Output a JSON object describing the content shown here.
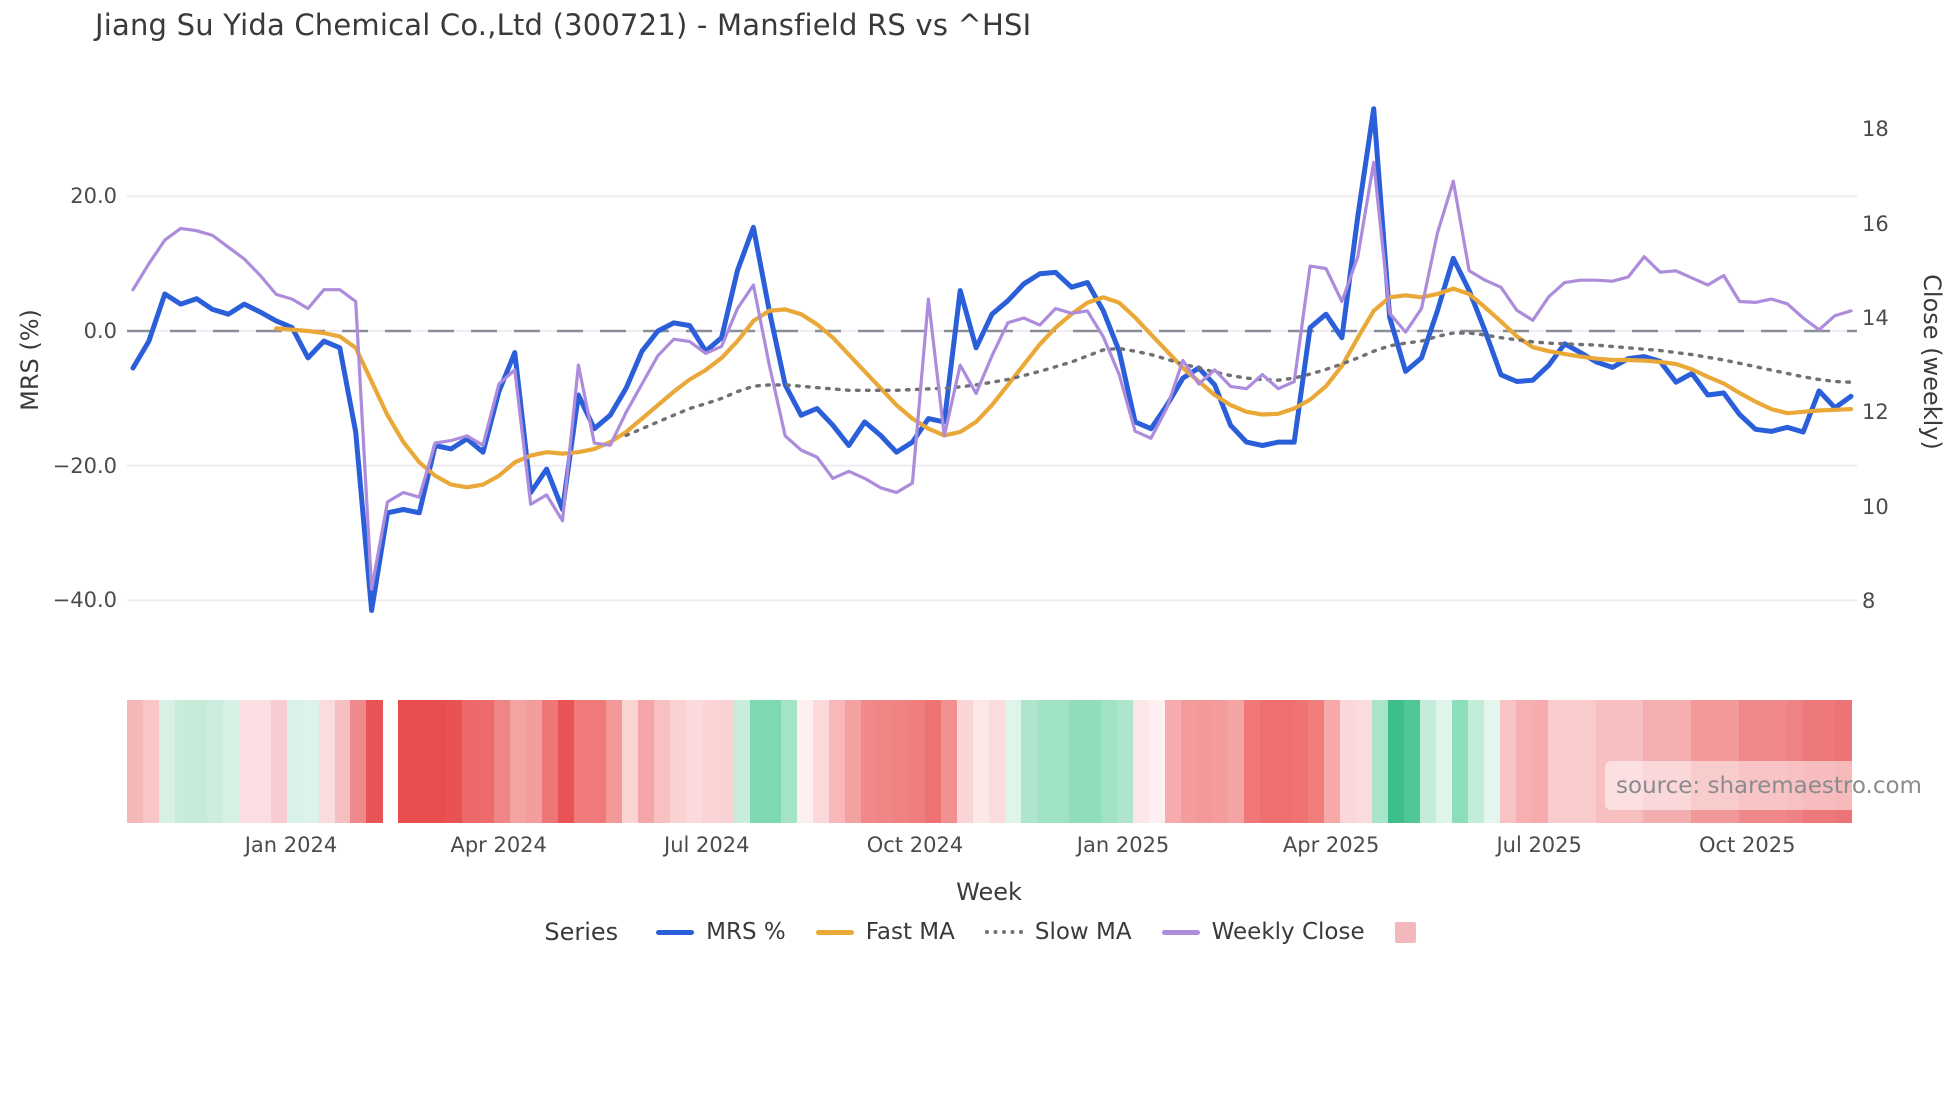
{
  "title": "Jiang Su Yida Chemical Co.,Ltd (300721) - Mansfield RS vs ^HSI",
  "source_note": "source: sharemaestro.com",
  "axes": {
    "left": {
      "label": "MRS (%)"
    },
    "right": {
      "label": "Close (weekly)"
    },
    "x": {
      "label": "Week"
    }
  },
  "legend": {
    "title": "Series",
    "items": [
      {
        "label": "MRS %",
        "style": "line",
        "color": "#2B5FD9"
      },
      {
        "label": "Fast MA",
        "style": "line",
        "color": "#EAA838"
      },
      {
        "label": "Slow MA",
        "style": "dotted",
        "color": "#707075"
      },
      {
        "label": "Weekly Close",
        "style": "line",
        "color": "#AC8CDB"
      },
      {
        "label": "",
        "style": "square",
        "color": "#F2B8BC"
      }
    ]
  },
  "chart_data": {
    "type": "line",
    "x_unit": "week",
    "n_points": 109,
    "y_left": {
      "label": "MRS (%)",
      "ticks": [
        20,
        0,
        -20,
        -40
      ],
      "tick_labels": [
        "20.0",
        "0.0",
        "−20.0",
        "−40.0"
      ],
      "zero_line": 0
    },
    "y_right": {
      "label": "Close (weekly)",
      "ticks": [
        18,
        16,
        14,
        12,
        10,
        8
      ],
      "tick_labels": [
        "18",
        "16",
        "14",
        "12",
        "10",
        "8"
      ]
    },
    "x_ticks": [
      {
        "label": "Jan 2024",
        "week": 9.93
      },
      {
        "label": "Apr 2024",
        "week": 22.99
      },
      {
        "label": "Jul 2024",
        "week": 36.07
      },
      {
        "label": "Oct 2024",
        "week": 49.16
      },
      {
        "label": "Jan 2025",
        "week": 62.24
      },
      {
        "label": "Apr 2025",
        "week": 75.32
      },
      {
        "label": "Jul 2025",
        "week": 88.4
      },
      {
        "label": "Oct 2025",
        "week": 101.48
      }
    ],
    "series": [
      {
        "name": "MRS %",
        "axis": "left",
        "color": "#2B5FD9",
        "width": 5,
        "dash": null,
        "values": [
          -5.5,
          -1.5,
          5.5,
          4,
          4.8,
          3.2,
          2.5,
          4,
          2.8,
          1.5,
          0.5,
          -4,
          -1.5,
          -2.5,
          -15,
          -41.5,
          -27,
          -26.5,
          -27,
          -17,
          -17.5,
          -16,
          -18,
          -9,
          -3.2,
          -24,
          -20.5,
          -26.5,
          -9.5,
          -14.5,
          -12.5,
          -8.5,
          -3,
          0,
          1.2,
          0.8,
          -3,
          -1,
          9,
          15.4,
          3,
          -8,
          -12.5,
          -11.5,
          -14,
          -17,
          -13.5,
          -15.5,
          -18,
          -16.5,
          -13,
          -13.5,
          6,
          -2.5,
          2.5,
          4.5,
          7,
          8.5,
          8.7,
          6.5,
          7.2,
          3,
          -3,
          -13.5,
          -14.5,
          -11,
          -7,
          -5.5,
          -8,
          -14,
          -16.5,
          -17,
          -16.5,
          -16.5,
          0.5,
          2.5,
          -1,
          17,
          33,
          2,
          -6,
          -4,
          3,
          10.8,
          6,
          0,
          -6.5,
          -7.5,
          -7.3,
          -5.1,
          -1.9,
          -3.2,
          -4.6,
          -5.4,
          -4.1,
          -3.8,
          -4.5,
          -7.6,
          -6.3,
          -9.5,
          -9.2,
          -12.4,
          -14.6,
          -14.9,
          -14.3,
          -15,
          -8.9,
          -11.4,
          -9.7
        ]
      },
      {
        "name": "Fast MA",
        "axis": "left",
        "color": "#EAA838",
        "width": 4.2,
        "dash": null,
        "values": [
          null,
          null,
          null,
          null,
          null,
          null,
          null,
          null,
          null,
          0.4,
          0.2,
          0,
          -0.3,
          -0.8,
          -2.5,
          -7.5,
          -12.5,
          -16.5,
          -19.5,
          -21.5,
          -22.8,
          -23.2,
          -22.8,
          -21.5,
          -19.5,
          -18.5,
          -18,
          -18.2,
          -18,
          -17.5,
          -16.5,
          -15,
          -13,
          -11,
          -9,
          -7.2,
          -5.8,
          -4,
          -1.5,
          1.5,
          3,
          3.2,
          2.5,
          1,
          -1,
          -3.5,
          -6,
          -8.5,
          -11,
          -13,
          -14.5,
          -15.5,
          -15,
          -13.5,
          -11,
          -8,
          -5,
          -2,
          0.5,
          2.5,
          4.2,
          5,
          4.2,
          2,
          -0.5,
          -3,
          -5.5,
          -7.5,
          -9.5,
          -11,
          -12,
          -12.4,
          -12.3,
          -11.5,
          -10.2,
          -8.2,
          -5.2,
          -1,
          3,
          5,
          5.3,
          5,
          5.5,
          6.3,
          5.5,
          3.5,
          1.4,
          -0.8,
          -2.4,
          -3,
          -3.4,
          -3.8,
          -4.1,
          -4.3,
          -4.3,
          -4.4,
          -4.6,
          -4.9,
          -5.7,
          -6.8,
          -7.8,
          -9.2,
          -10.5,
          -11.6,
          -12.2,
          -12,
          -11.8,
          -11.7,
          -11.6
        ]
      },
      {
        "name": "Slow MA",
        "axis": "left",
        "color": "#707075",
        "width": 3.4,
        "dash": "2.5 7.5",
        "values": [
          null,
          null,
          null,
          null,
          null,
          null,
          null,
          null,
          null,
          null,
          null,
          null,
          null,
          null,
          null,
          null,
          null,
          null,
          null,
          null,
          null,
          null,
          null,
          null,
          null,
          null,
          null,
          null,
          null,
          null,
          null,
          -15.5,
          -14.5,
          -13.5,
          -12.5,
          -11.5,
          -10.8,
          -10,
          -9,
          -8.2,
          -8,
          -8,
          -8.2,
          -8.4,
          -8.6,
          -8.8,
          -8.8,
          -8.8,
          -8.8,
          -8.7,
          -8.6,
          -8.5,
          -8.3,
          -8,
          -7.6,
          -7.2,
          -6.6,
          -6,
          -5.3,
          -4.6,
          -3.7,
          -2.8,
          -2.6,
          -3,
          -3.5,
          -4.2,
          -4.9,
          -5.5,
          -6.1,
          -6.6,
          -7,
          -7.2,
          -7.3,
          -7,
          -6.4,
          -5.7,
          -4.9,
          -4,
          -3,
          -2.2,
          -1.8,
          -1.5,
          -0.8,
          -0.3,
          -0.3,
          -0.6,
          -1,
          -1.3,
          -1.6,
          -1.8,
          -1.9,
          -2,
          -2.1,
          -2.3,
          -2.5,
          -2.7,
          -2.9,
          -3.2,
          -3.5,
          -3.9,
          -4.3,
          -4.8,
          -5.3,
          -5.8,
          -6.3,
          -6.8,
          -7.2,
          -7.5,
          -7.6
        ]
      },
      {
        "name": "Weekly Close",
        "axis": "right",
        "color": "#AC8CDB",
        "width": 3.2,
        "dash": null,
        "values": [
          14.6,
          15.15,
          15.65,
          15.9,
          15.85,
          15.75,
          15.5,
          15.25,
          14.9,
          14.5,
          14.4,
          14.2,
          14.6,
          14.6,
          14.35,
          8.25,
          10.1,
          10.3,
          10.2,
          11.35,
          11.4,
          11.5,
          11.3,
          12.6,
          12.9,
          10.05,
          10.25,
          9.7,
          13,
          11.35,
          11.3,
          12,
          12.6,
          13.2,
          13.55,
          13.5,
          13.25,
          13.4,
          14.2,
          14.7,
          13,
          11.5,
          11.2,
          11.05,
          10.6,
          10.75,
          10.6,
          10.4,
          10.3,
          10.5,
          14.4,
          11.5,
          13,
          12.4,
          13.2,
          13.9,
          14,
          13.85,
          14.2,
          14.1,
          14.15,
          13.6,
          12.8,
          11.6,
          11.45,
          12.1,
          13.1,
          12.6,
          12.9,
          12.55,
          12.5,
          12.8,
          12.5,
          12.65,
          15.1,
          15.05,
          14.35,
          15.3,
          17.3,
          14.1,
          13.7,
          14.2,
          15.8,
          16.9,
          15,
          14.8,
          14.65,
          14.16,
          13.95,
          14.45,
          14.75,
          14.8,
          14.8,
          14.78,
          14.87,
          15.3,
          14.97,
          15,
          14.85,
          14.7,
          14.9,
          14.35,
          14.33,
          14.4,
          14.3,
          14,
          13.75,
          14.05,
          14.15
        ]
      }
    ],
    "strip_colors": [
      "#F5B8B8",
      "#F8C6C6",
      "#D8F1E4",
      "#C9ECDA",
      "#C6EBD9",
      "#CDEEDE",
      "#D7F1E5",
      "#FBDEE1",
      "#FBDEE1",
      "#F8CDD1",
      "#D9F1E6",
      "#DDF2E8",
      "#FADCDF",
      "#F5BFC2",
      "#F0898B",
      "#E85456",
      null,
      "#E84E4E",
      "#E84E4E",
      "#E84E4E",
      "#E85252",
      "#ED6868",
      "#ED6B6B",
      "#F08585",
      "#F4A3A3",
      "#F39C9C",
      "#EE7676",
      "#E85353",
      "#F07A7A",
      "#F07A7A",
      "#F49999",
      "#FAD3D3",
      "#F5A6A8",
      "#F8C0C0",
      "#FBD2D2",
      "#FBDADC",
      "#FBD4D6",
      "#FAD2D4",
      "#C9EDDC",
      "#7ED9B2",
      "#7ED9B2",
      "#A5E3C6",
      "#FDEFEF",
      "#FBD9DB",
      "#F8B8BA",
      "#F4A1A1",
      "#F18989",
      "#F18585",
      "#F18282",
      "#F07E7E",
      "#EE7272",
      "#F29090",
      "#FBD5D5",
      "#FDE8E8",
      "#FBDCDC",
      "#DFF4EA",
      "#AEE5CC",
      "#9FE2C4",
      "#9FE2C4",
      "#8FDDBA",
      "#8FDDBA",
      "#9FE2C4",
      "#AEE5CC",
      "#FDE6E8",
      "#FEF0F1",
      "#F6ACAE",
      "#F49C9C",
      "#F49898",
      "#F49C9C",
      "#F5A4A4",
      "#F07878",
      "#EE6F6F",
      "#EE6F6F",
      "#EE7272",
      "#F07C7C",
      "#F5A9A9",
      "#FBD7D9",
      "#FBDBDD",
      "#A8E4C9",
      "#3DBE8B",
      "#52C796",
      "#C5ECDB",
      "#DFF4EA",
      "#8CDDBA",
      "#C2EBD8",
      "#E3F5EC",
      "#F8C3C5",
      "#F6B0B2",
      "#F6ACAE",
      "#FACBCD",
      "#FACBCD",
      "#FACBCD",
      "#F8BFC1",
      "#F8BFC1",
      "#F8BFC1",
      "#F5AEB0",
      "#F5AEB0",
      "#F5AEB0",
      "#F29899",
      "#F29899",
      "#F29899",
      "#F0888A",
      "#F0888A",
      "#F0888A",
      "#EF8284",
      "#EE797B",
      "#EE797B",
      "#ED7476"
    ],
    "colors": {
      "grid": "#EDEDF3",
      "zero_dash": "#8A8E99",
      "background": "#FFFFFF"
    }
  }
}
